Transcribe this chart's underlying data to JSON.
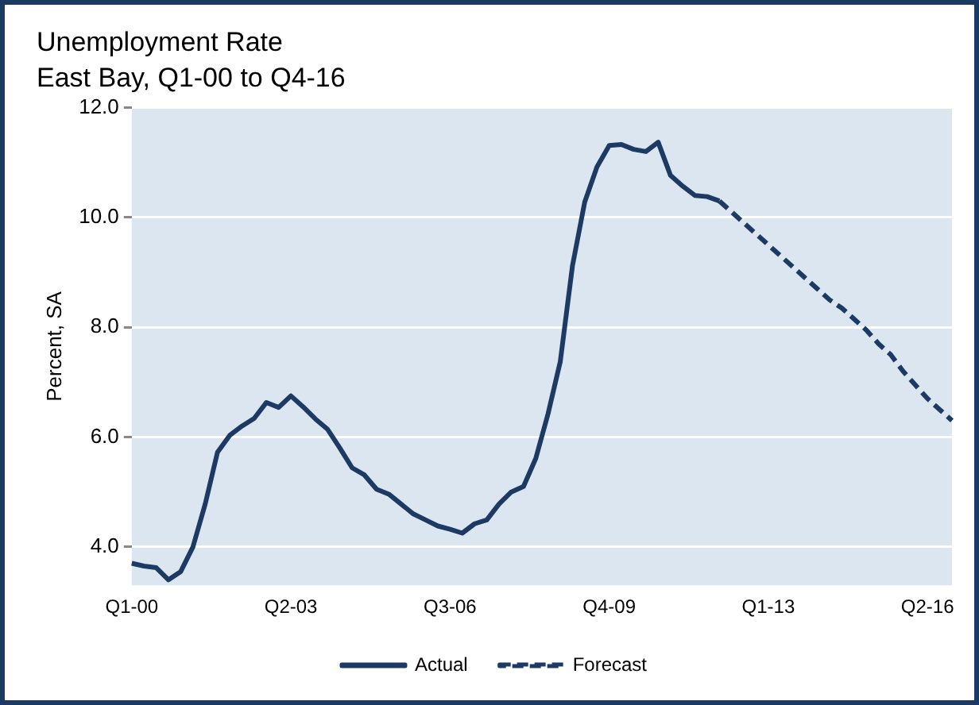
{
  "chart_data": {
    "type": "line",
    "title": "Unemployment Rate",
    "subtitle": "East Bay, Q1-00 to Q4-16",
    "ylabel": "Percent, SA",
    "categories": [
      "Q1-00",
      null,
      null,
      null,
      null,
      null,
      null,
      null,
      null,
      null,
      null,
      null,
      null,
      "Q2-03",
      null,
      null,
      null,
      null,
      null,
      null,
      null,
      null,
      null,
      null,
      null,
      null,
      "Q3-06",
      null,
      null,
      null,
      null,
      null,
      null,
      null,
      null,
      null,
      null,
      null,
      null,
      "Q4-09",
      null,
      null,
      null,
      null,
      null,
      null,
      null,
      null,
      null,
      null,
      null,
      null,
      "Q1-13",
      null,
      null,
      null,
      null,
      null,
      null,
      null,
      null,
      null,
      null,
      null,
      null,
      "Q2-16",
      null,
      null
    ],
    "series": [
      {
        "name": "Actual",
        "color": "#1d3a63",
        "line_style": "solid",
        "values": [
          3.7,
          3.65,
          3.62,
          3.4,
          3.55,
          4.0,
          4.78,
          5.72,
          6.03,
          6.2,
          6.34,
          6.63,
          6.54,
          6.75,
          6.55,
          6.33,
          6.14,
          5.8,
          5.44,
          5.31,
          5.05,
          4.96,
          4.78,
          4.6,
          4.49,
          4.38,
          4.32,
          4.25,
          4.42,
          4.49,
          4.78,
          5.0,
          5.1,
          5.61,
          6.42,
          7.37,
          9.12,
          10.28,
          10.92,
          11.31,
          11.33,
          11.24,
          11.2,
          11.37,
          10.77,
          10.57,
          10.4,
          10.38,
          10.3,
          null,
          null,
          null,
          null,
          null,
          null,
          null,
          null,
          null,
          null,
          null,
          null,
          null,
          null,
          null,
          null,
          null,
          null,
          null
        ]
      },
      {
        "name": "Forecast",
        "color": "#1d3a63",
        "line_style": "dashed",
        "values": [
          null,
          null,
          null,
          null,
          null,
          null,
          null,
          null,
          null,
          null,
          null,
          null,
          null,
          null,
          null,
          null,
          null,
          null,
          null,
          null,
          null,
          null,
          null,
          null,
          null,
          null,
          null,
          null,
          null,
          null,
          null,
          null,
          null,
          null,
          null,
          null,
          null,
          null,
          null,
          null,
          null,
          null,
          null,
          null,
          null,
          null,
          null,
          null,
          10.3,
          10.1,
          9.9,
          9.7,
          9.5,
          9.3,
          9.1,
          8.9,
          8.7,
          8.5,
          8.35,
          8.15,
          7.95,
          7.7,
          7.5,
          7.2,
          6.95,
          6.7,
          6.5,
          6.3
        ]
      }
    ],
    "ylim": [
      3.3,
      12
    ],
    "yticks": [
      {
        "value": 4,
        "label": "4.0"
      },
      {
        "value": 6,
        "label": "6.0"
      },
      {
        "value": 8,
        "label": "8.0"
      },
      {
        "value": 10,
        "label": "10.0"
      },
      {
        "value": 12,
        "label": "12.0"
      }
    ],
    "grid": "y",
    "legend": "bottom"
  }
}
